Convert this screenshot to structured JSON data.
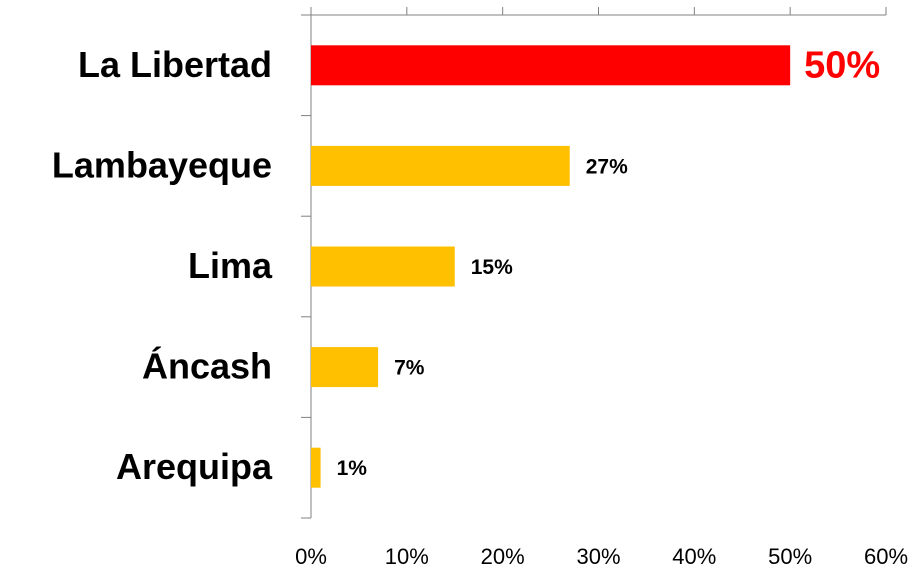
{
  "chart_data": {
    "type": "barh",
    "categories": [
      "La Libertad",
      "Lambayeque",
      "Lima",
      "Áncash",
      "Arequipa"
    ],
    "values": [
      50,
      27,
      15,
      7,
      1
    ],
    "value_labels": [
      "50%",
      "27%",
      "15%",
      "7%",
      "1%"
    ],
    "colors": [
      "#ff0000",
      "#ffc000",
      "#ffc000",
      "#ffc000",
      "#ffc000"
    ],
    "label_colors": [
      "#ff0000",
      "#000000",
      "#000000",
      "#000000",
      "#000000"
    ],
    "xlim": [
      0,
      60
    ],
    "xticks": [
      {
        "value": 0,
        "label": "0%"
      },
      {
        "value": 10,
        "label": "10%"
      },
      {
        "value": 20,
        "label": "20%"
      },
      {
        "value": 30,
        "label": "30%"
      },
      {
        "value": 40,
        "label": "40%"
      },
      {
        "value": 50,
        "label": "50%"
      },
      {
        "value": 60,
        "label": "60%"
      }
    ],
    "grid": false
  }
}
